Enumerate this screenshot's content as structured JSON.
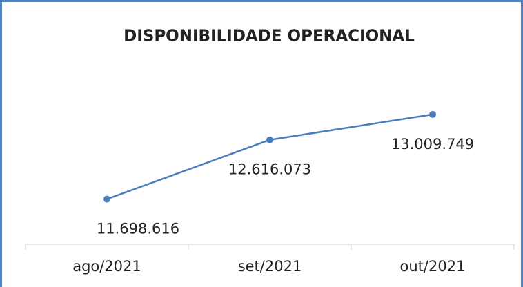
{
  "chart_data": {
    "type": "line",
    "title": "DISPONIBILIDADE OPERACIONAL",
    "categories": [
      "ago/2021",
      "set/2021",
      "out/2021"
    ],
    "values": [
      11698616,
      12616073,
      13009749
    ],
    "value_labels": [
      "11.698.616",
      "12.616.073",
      "13.009.749"
    ],
    "color": "#4a7ebb",
    "ylim": [
      11000000,
      13500000
    ]
  }
}
